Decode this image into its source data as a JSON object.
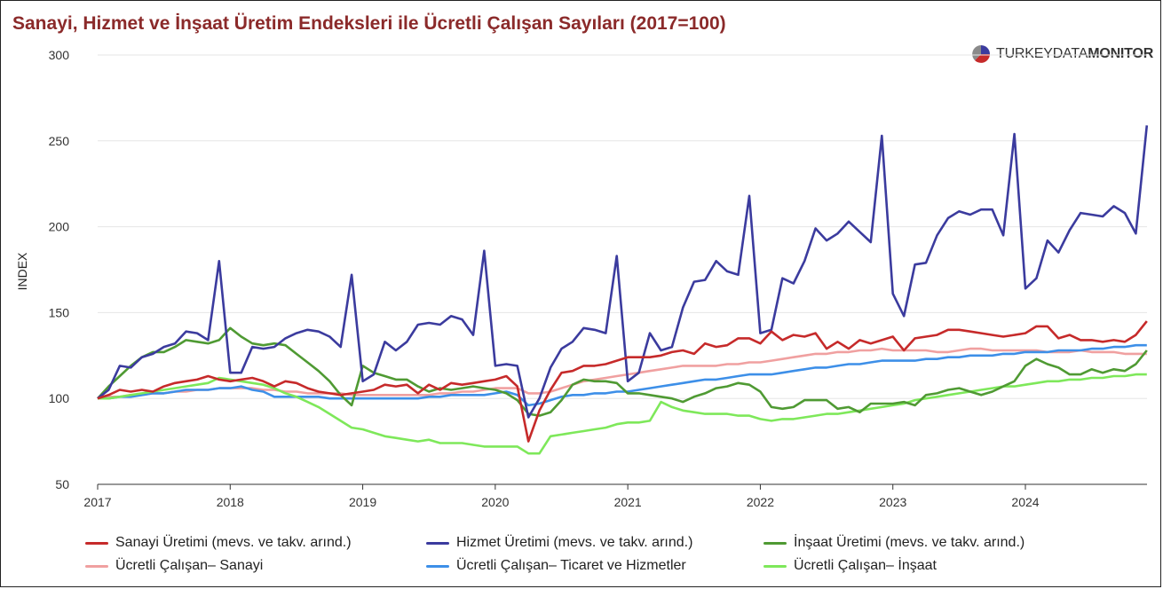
{
  "header": {
    "title": "Sanayi, Hizmet ve İnşaat Üretim Endeksleri ile Ücretli Çalışan Sayıları (2017=100)",
    "brand_light": "TURKEY",
    "brand_mid": "DATA",
    "brand_bold": "MONITOR",
    "brand_icon": "pie-logo-icon"
  },
  "chart_data": {
    "type": "line",
    "title": "Sanayi, Hizmet ve İnşaat Üretim Endeksleri ile Ücretli Çalışan Sayıları (2017=100)",
    "xlabel": "",
    "ylabel": "INDEX",
    "ylim": [
      50,
      300
    ],
    "yticks": [
      50,
      100,
      150,
      200,
      250,
      300
    ],
    "xlim": [
      2017,
      2024.92
    ],
    "xticks": [
      "2017",
      "2018",
      "2019",
      "2020",
      "2021",
      "2022",
      "2023",
      "2024"
    ],
    "grid": true,
    "legend_position": "bottom",
    "x_start": "2017-01",
    "x_step": "1 month",
    "series": [
      {
        "name": "Sanayi Üretimi (mevs. ve takv. arınd.)",
        "color": "#c62a2a",
        "values": [
          100,
          102,
          105,
          104,
          105,
          104,
          107,
          109,
          110,
          111,
          113,
          111,
          110,
          111,
          112,
          110,
          107,
          110,
          109,
          106,
          104,
          103,
          102,
          103,
          104,
          105,
          108,
          107,
          108,
          103,
          108,
          105,
          109,
          108,
          109,
          110,
          111,
          113,
          107,
          75,
          93,
          105,
          115,
          116,
          119,
          119,
          120,
          122,
          124,
          124,
          124,
          125,
          127,
          128,
          126,
          132,
          130,
          131,
          135,
          135,
          132,
          139,
          134,
          137,
          136,
          138,
          129,
          133,
          129,
          134,
          132,
          134,
          136,
          128,
          135,
          136,
          137,
          140,
          140,
          139,
          138,
          137,
          136,
          137,
          138,
          142,
          142,
          135,
          137,
          134,
          134,
          133,
          134,
          133,
          137,
          145
        ]
      },
      {
        "name": "Hizmet Üretimi (mevs. ve takv. arınd.)",
        "color": "#3b3b9e",
        "values": [
          100,
          105,
          119,
          118,
          124,
          126,
          130,
          132,
          139,
          138,
          134,
          180,
          115,
          115,
          130,
          129,
          130,
          135,
          138,
          140,
          139,
          136,
          130,
          172,
          110,
          114,
          133,
          128,
          133,
          143,
          144,
          143,
          148,
          146,
          137,
          186,
          119,
          120,
          119,
          89,
          100,
          118,
          129,
          133,
          141,
          140,
          138,
          183,
          110,
          115,
          138,
          128,
          130,
          153,
          168,
          169,
          180,
          174,
          172,
          218,
          138,
          140,
          170,
          167,
          180,
          199,
          192,
          196,
          203,
          197,
          191,
          253,
          161,
          148,
          178,
          179,
          195,
          205,
          209,
          207,
          210,
          210,
          195,
          254,
          164,
          170,
          192,
          185,
          198,
          208,
          207,
          206,
          212,
          208,
          196,
          259
        ]
      },
      {
        "name": "İnşaat Üretimi (mevs. ve takv. arınd.)",
        "color": "#4f9a33",
        "values": [
          100,
          107,
          113,
          119,
          124,
          127,
          127,
          130,
          134,
          133,
          132,
          134,
          141,
          136,
          132,
          131,
          132,
          131,
          126,
          121,
          116,
          110,
          102,
          96,
          119,
          115,
          113,
          111,
          111,
          107,
          104,
          106,
          105,
          106,
          107,
          106,
          105,
          103,
          99,
          91,
          90,
          92,
          99,
          108,
          111,
          110,
          110,
          109,
          103,
          103,
          102,
          101,
          100,
          98,
          101,
          103,
          106,
          107,
          109,
          108,
          104,
          95,
          94,
          95,
          99,
          99,
          99,
          94,
          95,
          92,
          97,
          97,
          97,
          98,
          96,
          102,
          103,
          105,
          106,
          104,
          102,
          104,
          107,
          110,
          119,
          123,
          120,
          118,
          114,
          114,
          117,
          115,
          117,
          116,
          120,
          128
        ]
      },
      {
        "name": "Ücretli Çalışan– Sanayi",
        "color": "#f0a0a0",
        "values": [
          100,
          101,
          101,
          102,
          102,
          103,
          103,
          104,
          104,
          105,
          105,
          106,
          106,
          106,
          106,
          105,
          105,
          104,
          104,
          103,
          103,
          103,
          103,
          102,
          102,
          102,
          102,
          102,
          102,
          102,
          102,
          103,
          103,
          104,
          104,
          105,
          106,
          106,
          106,
          103,
          103,
          104,
          106,
          108,
          110,
          111,
          112,
          113,
          114,
          115,
          116,
          117,
          118,
          119,
          119,
          119,
          119,
          120,
          120,
          121,
          121,
          122,
          123,
          124,
          125,
          126,
          126,
          127,
          127,
          128,
          128,
          129,
          128,
          128,
          128,
          128,
          127,
          127,
          128,
          129,
          129,
          128,
          128,
          128,
          128,
          128,
          127,
          127,
          127,
          128,
          127,
          127,
          127,
          126,
          126,
          126
        ]
      },
      {
        "name": "Ücretli Çalışan– Ticaret ve Hizmetler",
        "color": "#3d8fe8",
        "values": [
          100,
          100,
          101,
          101,
          102,
          103,
          103,
          104,
          105,
          105,
          105,
          106,
          106,
          107,
          105,
          104,
          101,
          101,
          101,
          101,
          101,
          100,
          100,
          100,
          100,
          100,
          100,
          100,
          100,
          100,
          101,
          101,
          102,
          102,
          102,
          102,
          103,
          104,
          102,
          96,
          97,
          99,
          101,
          102,
          102,
          103,
          103,
          104,
          104,
          105,
          106,
          107,
          108,
          109,
          110,
          111,
          111,
          112,
          113,
          114,
          114,
          114,
          115,
          116,
          117,
          118,
          118,
          119,
          120,
          120,
          121,
          122,
          122,
          122,
          122,
          123,
          123,
          124,
          124,
          125,
          125,
          125,
          126,
          126,
          127,
          127,
          127,
          128,
          128,
          128,
          129,
          129,
          130,
          130,
          131,
          131
        ]
      },
      {
        "name": "Ücretli Çalışan– İnşaat",
        "color": "#7ee85a",
        "values": [
          100,
          100,
          101,
          102,
          103,
          104,
          105,
          106,
          107,
          108,
          109,
          112,
          111,
          110,
          109,
          108,
          106,
          103,
          101,
          98,
          95,
          91,
          87,
          83,
          82,
          80,
          78,
          77,
          76,
          75,
          76,
          74,
          74,
          74,
          73,
          72,
          72,
          72,
          72,
          68,
          68,
          78,
          79,
          80,
          81,
          82,
          83,
          85,
          86,
          86,
          87,
          98,
          95,
          93,
          92,
          91,
          91,
          91,
          90,
          90,
          88,
          87,
          88,
          88,
          89,
          90,
          91,
          91,
          92,
          93,
          94,
          95,
          96,
          97,
          99,
          100,
          101,
          102,
          103,
          104,
          105,
          106,
          107,
          107,
          108,
          109,
          110,
          110,
          111,
          111,
          112,
          112,
          113,
          113,
          114,
          114
        ]
      }
    ]
  }
}
